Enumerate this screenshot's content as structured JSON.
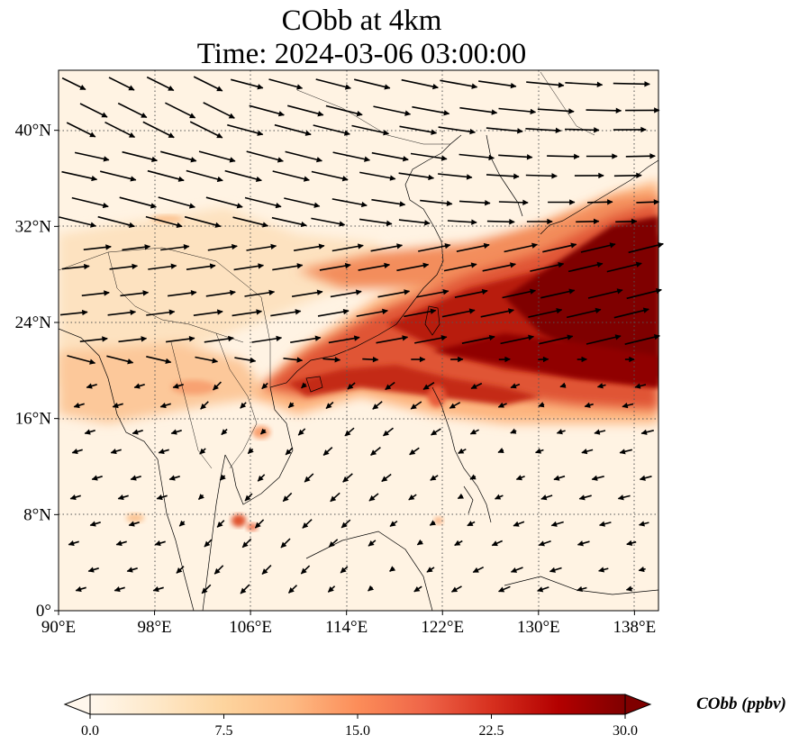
{
  "title": {
    "line1": "CObb at 4km",
    "line2": "Time: 2024-03-06 03:00:00"
  },
  "map": {
    "variable": "CObb",
    "level": "4km",
    "lon_range": [
      90,
      140
    ],
    "lat_range": [
      0,
      45
    ],
    "lon_ticks": [
      {
        "value": 90,
        "label": "90°E"
      },
      {
        "value": 98,
        "label": "98°E"
      },
      {
        "value": 106,
        "label": "106°E"
      },
      {
        "value": 114,
        "label": "114°E"
      },
      {
        "value": 122,
        "label": "122°E"
      },
      {
        "value": 130,
        "label": "130°E"
      },
      {
        "value": 138,
        "label": "138°E"
      }
    ],
    "lat_ticks": [
      {
        "value": 0,
        "label": "0°"
      },
      {
        "value": 8,
        "label": "8°N"
      },
      {
        "value": 16,
        "label": "16°N"
      },
      {
        "value": 24,
        "label": "24°N"
      },
      {
        "value": 32,
        "label": "32°N"
      },
      {
        "value": 40,
        "label": "40°N"
      }
    ],
    "grid": "dotted",
    "wind_vectors": true
  },
  "colorbar": {
    "label": "CObb (ppbv)",
    "min": 0.0,
    "max": 30.0,
    "ticks": [
      "0.0",
      "7.5",
      "15.0",
      "22.5",
      "30.0"
    ],
    "extend": "both",
    "colormap": "OrRd",
    "colors": [
      "#fff7ec",
      "#fee8c8",
      "#fdd49e",
      "#fdbb84",
      "#fc8d59",
      "#ef6548",
      "#d7301f",
      "#b30000",
      "#7f0000"
    ]
  }
}
